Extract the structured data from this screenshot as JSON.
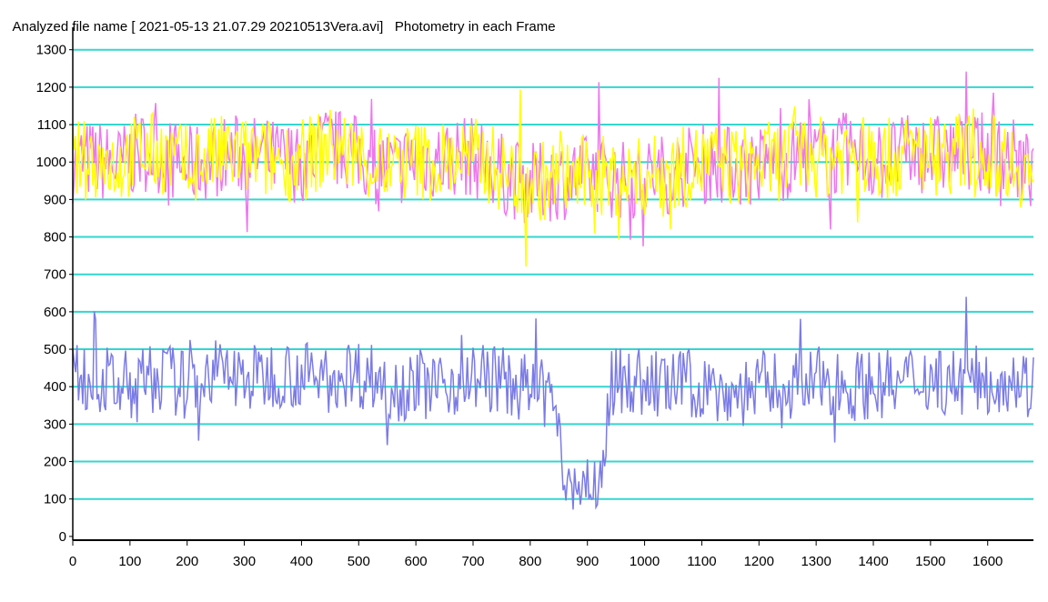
{
  "title": {
    "file_label": "Analyzed file name [ 2021-05-13 21.07.29 20210513Vera.avi]",
    "subtitle": "Photometry in each Frame"
  },
  "colors": {
    "background": "#ffffff",
    "grid": "#33d6cf",
    "series_target": "#ffff00",
    "series_overlay": "#ee77ee",
    "series_lower": "#7b7be6",
    "axis": "#000000"
  },
  "chart_data": {
    "type": "line",
    "xlim": [
      0,
      1680
    ],
    "ylim": [
      -10,
      1360
    ],
    "xticks": [
      "0",
      "100",
      "200",
      "300",
      "400",
      "500",
      "600",
      "700",
      "800",
      "900",
      "1000",
      "1100",
      "1200",
      "1300",
      "1400",
      "1500",
      "1600"
    ],
    "yticks": [
      "0",
      "100",
      "200",
      "300",
      "400",
      "500",
      "600",
      "700",
      "800",
      "900",
      "1000",
      "1100",
      "1200",
      "1300"
    ],
    "grid": true,
    "series": [
      {
        "color": "#ee77ee",
        "x": [
          0,
          40,
          80,
          120,
          160,
          200,
          240,
          280,
          320,
          360,
          400,
          440,
          480,
          520,
          560,
          600,
          640,
          680,
          720,
          760,
          800,
          840,
          880,
          920,
          960,
          1000,
          1040,
          1080,
          1120,
          1160,
          1200,
          1240,
          1280,
          1320,
          1360,
          1400,
          1440,
          1480,
          1520,
          1560,
          1600,
          1640,
          1680
        ],
        "values": [
          1000,
          1005,
          990,
          1030,
          1020,
          985,
          1010,
          1020,
          1015,
          1005,
          1000,
          1040,
          1030,
          1000,
          980,
          1010,
          1005,
          1020,
          1000,
          960,
          940,
          950,
          960,
          970,
          950,
          955,
          970,
          990,
          1000,
          985,
          990,
          1000,
          1020,
          1010,
          1030,
          1000,
          1010,
          1025,
          1020,
          1030,
          1020,
          1015,
          960
        ]
      },
      {
        "color": "#ffff00",
        "x": [
          0,
          40,
          80,
          120,
          160,
          200,
          240,
          280,
          320,
          360,
          400,
          440,
          480,
          520,
          560,
          600,
          640,
          680,
          720,
          760,
          800,
          840,
          880,
          920,
          960,
          1000,
          1040,
          1080,
          1120,
          1160,
          1200,
          1240,
          1280,
          1320,
          1360,
          1400,
          1440,
          1480,
          1520,
          1560,
          1600,
          1640,
          1680
        ],
        "values": [
          1000,
          1010,
          995,
          1030,
          1020,
          990,
          1015,
          1020,
          1010,
          1005,
          1000,
          1040,
          1030,
          1000,
          985,
          1005,
          1000,
          1015,
          1005,
          965,
          945,
          955,
          960,
          965,
          955,
          960,
          975,
          990,
          1000,
          990,
          995,
          1005,
          1020,
          1010,
          1030,
          1005,
          1010,
          1025,
          1020,
          1030,
          1020,
          1010,
          960
        ]
      },
      {
        "color": "#7b7be6",
        "x": [
          0,
          40,
          80,
          120,
          160,
          200,
          240,
          280,
          320,
          360,
          400,
          440,
          480,
          520,
          560,
          600,
          640,
          680,
          720,
          760,
          800,
          840,
          860,
          880,
          900,
          920,
          940,
          960,
          1000,
          1040,
          1080,
          1120,
          1160,
          1200,
          1240,
          1280,
          1320,
          1360,
          1400,
          1440,
          1480,
          1520,
          1560,
          1600,
          1640,
          1680
        ],
        "values": [
          430,
          420,
          400,
          410,
          430,
          400,
          440,
          430,
          420,
          440,
          430,
          420,
          440,
          430,
          400,
          410,
          400,
          420,
          430,
          410,
          390,
          380,
          140,
          130,
          150,
          120,
          400,
          420,
          410,
          400,
          410,
          390,
          380,
          400,
          410,
          400,
          420,
          400,
          410,
          400,
          430,
          420,
          410,
          420,
          430,
          400
        ]
      }
    ]
  }
}
